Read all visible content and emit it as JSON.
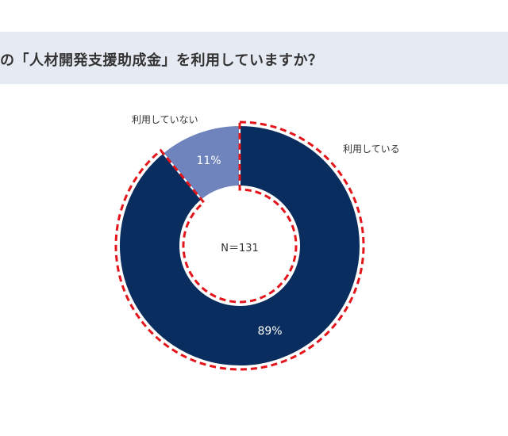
{
  "header": {
    "title": "の「人材開発支援助成金」を利用していますか？"
  },
  "chart_data": {
    "type": "pie",
    "donut": true,
    "center_label": "N＝131",
    "title": "の「人材開発支援助成金」を利用していますか？",
    "slices": [
      {
        "label": "利用している",
        "value": 89,
        "display": "89%",
        "color": "#082d5e"
      },
      {
        "label": "利用していない",
        "value": 11,
        "display": "11%",
        "color": "#6f84bd"
      }
    ],
    "highlight": {
      "target": "利用している",
      "style": "red-dashed-outline",
      "color": "#e4141b"
    }
  }
}
